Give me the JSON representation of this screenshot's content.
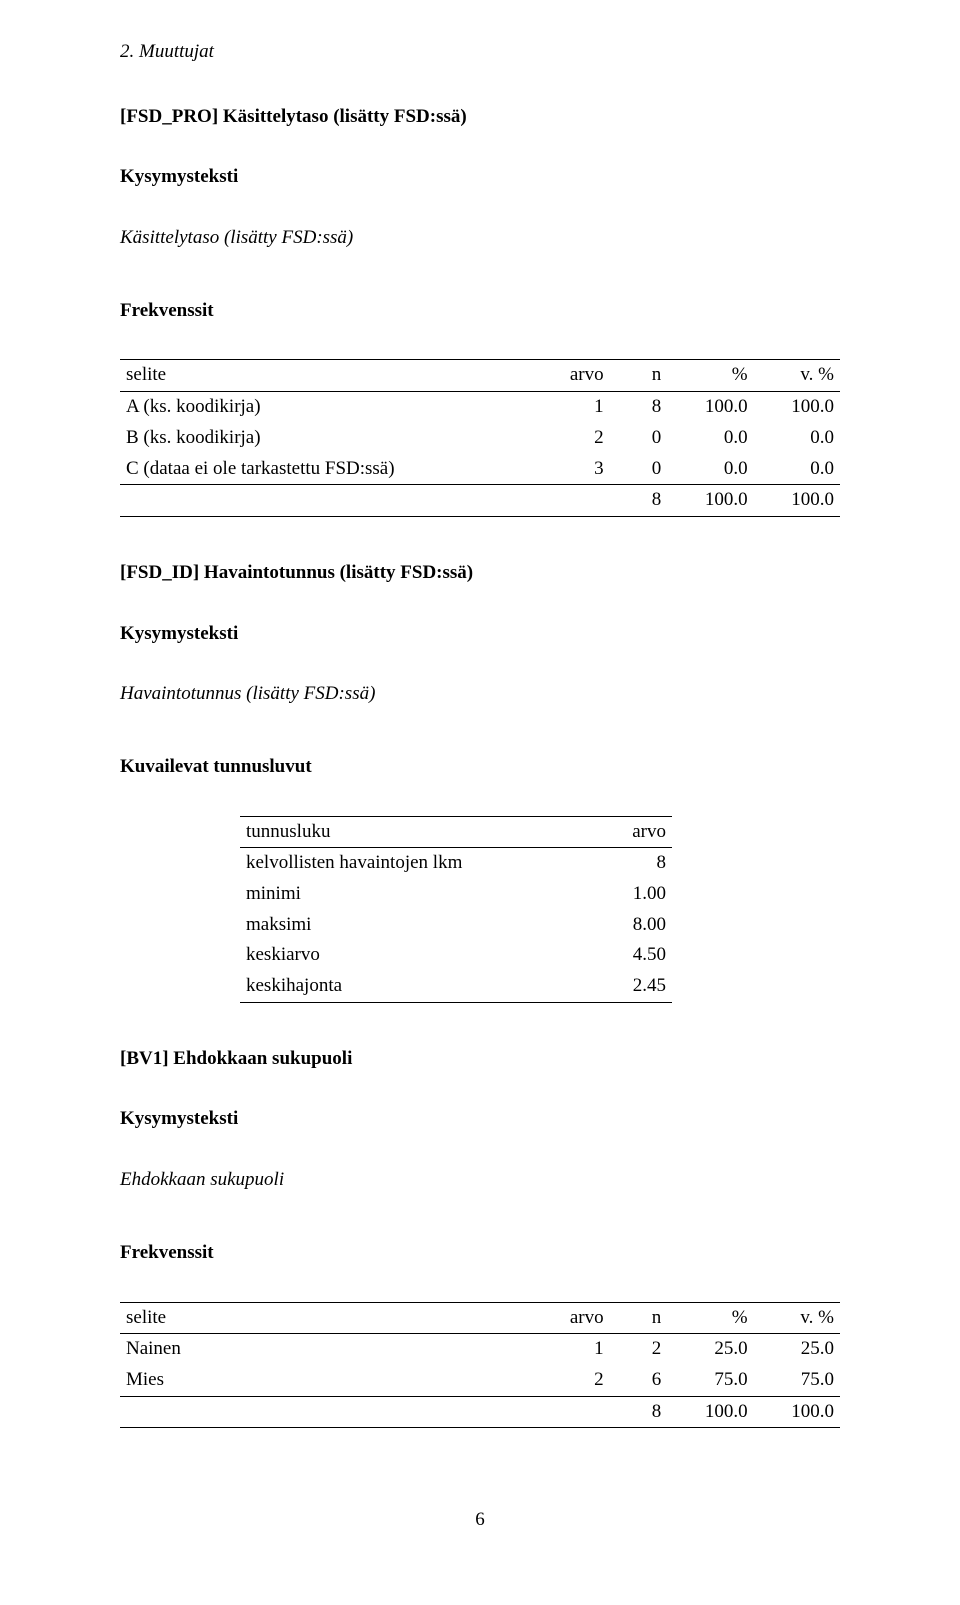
{
  "section_heading": "2. Muuttujat",
  "labels": {
    "kysymysteksti": "Kysymysteksti",
    "frekvenssit": "Frekvenssit",
    "kuvailevat": "Kuvailevat tunnusluvut"
  },
  "freq_headers": {
    "selite": "selite",
    "arvo": "arvo",
    "n": "n",
    "pct": "%",
    "vpct": "v. %"
  },
  "stats_headers": {
    "tunnusluku": "tunnusluku",
    "arvo": "arvo"
  },
  "vars": {
    "fsd_pro": {
      "title": "[FSD_PRO] Käsittelytaso (lisätty FSD:ssä)",
      "question": "Käsittelytaso (lisätty FSD:ssä)",
      "freq": {
        "rows": [
          {
            "selite": "A (ks. koodikirja)",
            "arvo": "1",
            "n": "8",
            "pct": "100.0",
            "vpct": "100.0"
          },
          {
            "selite": "B (ks. koodikirja)",
            "arvo": "2",
            "n": "0",
            "pct": "0.0",
            "vpct": "0.0"
          },
          {
            "selite": "C (dataa ei ole tarkastettu FSD:ssä)",
            "arvo": "3",
            "n": "0",
            "pct": "0.0",
            "vpct": "0.0"
          }
        ],
        "total": {
          "n": "8",
          "pct": "100.0",
          "vpct": "100.0"
        }
      }
    },
    "fsd_id": {
      "title": "[FSD_ID] Havaintotunnus (lisätty FSD:ssä)",
      "question": "Havaintotunnus (lisätty FSD:ssä)",
      "stats": [
        {
          "label": "kelvollisten havaintojen lkm",
          "value": "8"
        },
        {
          "label": "minimi",
          "value": "1.00"
        },
        {
          "label": "maksimi",
          "value": "8.00"
        },
        {
          "label": "keskiarvo",
          "value": "4.50"
        },
        {
          "label": "keskihajonta",
          "value": "2.45"
        }
      ]
    },
    "bv1": {
      "title": "[BV1] Ehdokkaan sukupuoli",
      "question": "Ehdokkaan sukupuoli",
      "freq": {
        "rows": [
          {
            "selite": "Nainen",
            "arvo": "1",
            "n": "2",
            "pct": "25.0",
            "vpct": "25.0"
          },
          {
            "selite": "Mies",
            "arvo": "2",
            "n": "6",
            "pct": "75.0",
            "vpct": "75.0"
          }
        ],
        "total": {
          "n": "8",
          "pct": "100.0",
          "vpct": "100.0"
        }
      }
    }
  },
  "page_number": "6"
}
